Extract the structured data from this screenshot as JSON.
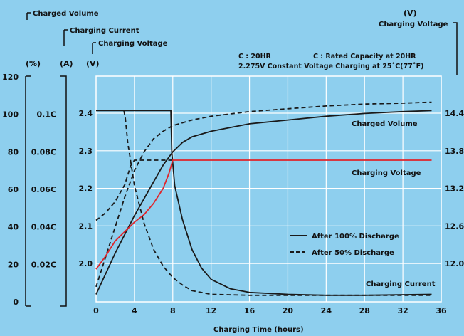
{
  "chart_data": {
    "type": "line",
    "title_left": {
      "charged_volume": "Charged Volume",
      "charging_current": "Charging Current",
      "charging_voltage": "Charging Voltage"
    },
    "axis_units": {
      "volume": "(%)",
      "current": "(A)",
      "voltage": "(V)",
      "right_unit": "(V)",
      "right_label": "Charging Voltage"
    },
    "notes": {
      "line1_left": "C : 20HR",
      "line1_right": "C : Rated Capacity at 20HR",
      "line2": "2.275V Constant Voltage Charging at 25˚C(77˚F)"
    },
    "xlabel": "Charging Time (hours)",
    "x_ticks": [
      "0",
      "4",
      "8",
      "12",
      "16",
      "20",
      "24",
      "28",
      "32",
      "36"
    ],
    "xlim": [
      0,
      36
    ],
    "volume_ticks": [
      "120",
      "100",
      "80",
      "60",
      "40",
      "20",
      "0"
    ],
    "current_ticks": [
      "0.1C",
      "0.08C",
      "0.06C",
      "0.04C",
      "0.02C"
    ],
    "voltage_ticks": [
      "2.4",
      "2.3",
      "2.2",
      "2.1",
      "2.0"
    ],
    "right_ticks": [
      "14.4",
      "13.8",
      "13.2",
      "12.6",
      "12.0"
    ],
    "curve_labels": {
      "charged_volume": "Charged Volume",
      "charging_voltage": "Charging Voltage",
      "charging_current": "Charging Current"
    },
    "legend": {
      "solid": "After 100% Discharge",
      "dashed": "After 50% Discharge"
    },
    "colors": {
      "background": "#8ecfee",
      "voltage_line": "#e0242a",
      "lines": "#1a1a1a",
      "grid": "#ffffff"
    },
    "series": {
      "volume_100": [
        [
          0,
          4
        ],
        [
          1,
          15
        ],
        [
          2,
          26
        ],
        [
          3,
          36
        ],
        [
          4,
          46
        ],
        [
          5,
          55
        ],
        [
          6,
          64
        ],
        [
          7,
          73
        ],
        [
          8,
          80
        ],
        [
          9,
          85
        ],
        [
          10,
          88
        ],
        [
          12,
          91
        ],
        [
          16,
          95
        ],
        [
          20,
          97
        ],
        [
          24,
          99
        ],
        [
          28,
          100.5
        ],
        [
          32,
          101.5
        ],
        [
          35,
          102
        ]
      ],
      "volume_50": [
        [
          0,
          8
        ],
        [
          1,
          24
        ],
        [
          2,
          40
        ],
        [
          3,
          56
        ],
        [
          4,
          70
        ],
        [
          5,
          80
        ],
        [
          6,
          87
        ],
        [
          7,
          91
        ],
        [
          8,
          94
        ],
        [
          10,
          97
        ],
        [
          12,
          99
        ],
        [
          16,
          101.5
        ],
        [
          20,
          103
        ],
        [
          24,
          104.5
        ],
        [
          28,
          105.5
        ],
        [
          32,
          106
        ],
        [
          35,
          106.5
        ]
      ],
      "current_100": [
        [
          0,
          0.102
        ],
        [
          7.8,
          0.102
        ],
        [
          7.9,
          0.08
        ],
        [
          8.2,
          0.062
        ],
        [
          9,
          0.044
        ],
        [
          10,
          0.028
        ],
        [
          11,
          0.018
        ],
        [
          12,
          0.012
        ],
        [
          14,
          0.007
        ],
        [
          16,
          0.005
        ],
        [
          20,
          0.004
        ],
        [
          24,
          0.0035
        ],
        [
          28,
          0.0035
        ],
        [
          35,
          0.004
        ]
      ],
      "current_50": [
        [
          2.9,
          0.102
        ],
        [
          3.05,
          0.098
        ],
        [
          3.3,
          0.085
        ],
        [
          4,
          0.062
        ],
        [
          5,
          0.042
        ],
        [
          6,
          0.028
        ],
        [
          7,
          0.019
        ],
        [
          8,
          0.013
        ],
        [
          9,
          0.009
        ],
        [
          10,
          0.006
        ],
        [
          12,
          0.004
        ],
        [
          16,
          0.0035
        ],
        [
          24,
          0.0035
        ],
        [
          35,
          0.0035
        ]
      ],
      "voltage_100": [
        [
          0,
          1.985
        ],
        [
          1,
          2.02
        ],
        [
          2,
          2.06
        ],
        [
          3,
          2.085
        ],
        [
          4,
          2.11
        ],
        [
          5,
          2.13
        ],
        [
          6,
          2.16
        ],
        [
          7,
          2.2
        ],
        [
          7.6,
          2.24
        ],
        [
          8,
          2.275
        ],
        [
          35,
          2.275
        ]
      ],
      "voltage_50": [
        [
          0,
          2.115
        ],
        [
          1,
          2.135
        ],
        [
          2,
          2.165
        ],
        [
          3,
          2.21
        ],
        [
          3.6,
          2.26
        ],
        [
          4,
          2.275
        ],
        [
          8,
          2.275
        ]
      ]
    }
  }
}
